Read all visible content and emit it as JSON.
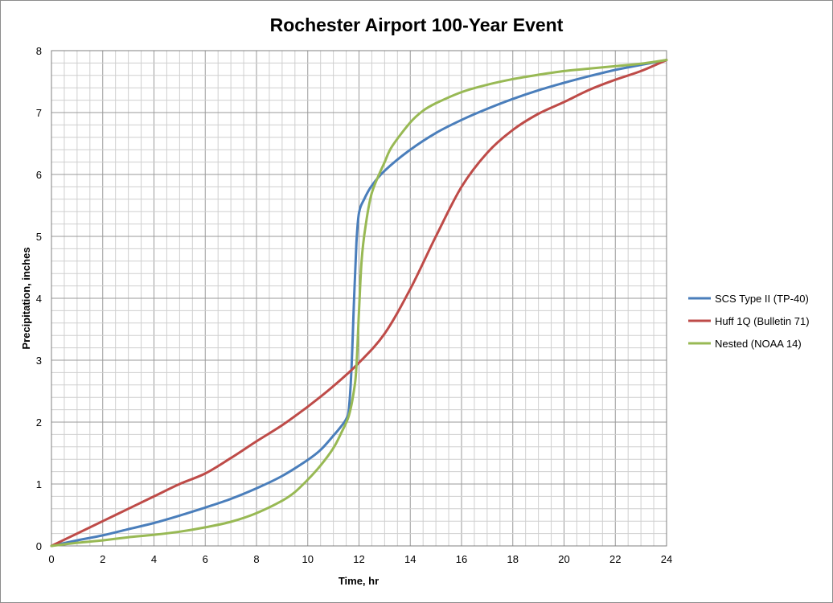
{
  "chart_data": {
    "type": "line",
    "title": "Rochester Airport 100-Year Event",
    "xlabel": "Time, hr",
    "ylabel": "Precipitation, inches",
    "xlim": [
      0,
      24
    ],
    "ylim": [
      0,
      8
    ],
    "x_ticks": [
      0,
      2,
      4,
      6,
      8,
      10,
      12,
      14,
      16,
      18,
      20,
      22,
      24
    ],
    "y_ticks": [
      0,
      1,
      2,
      3,
      4,
      5,
      6,
      7,
      8
    ],
    "grid": {
      "x_minor_step": 0.5,
      "y_minor_step": 0.2,
      "visible": true
    },
    "legend_position": "right",
    "series": [
      {
        "name": "SCS Type II (TP-40)",
        "color": "#4a7ebb",
        "points": [
          [
            0,
            0
          ],
          [
            1,
            0.09
          ],
          [
            2,
            0.17
          ],
          [
            3,
            0.27
          ],
          [
            4,
            0.37
          ],
          [
            5,
            0.49
          ],
          [
            6,
            0.62
          ],
          [
            7,
            0.76
          ],
          [
            8,
            0.93
          ],
          [
            9,
            1.13
          ],
          [
            10,
            1.39
          ],
          [
            10.5,
            1.55
          ],
          [
            11,
            1.78
          ],
          [
            11.3,
            1.93
          ],
          [
            11.5,
            2.05
          ],
          [
            11.6,
            2.2
          ],
          [
            11.7,
            2.8
          ],
          [
            11.8,
            3.9
          ],
          [
            11.9,
            4.9
          ],
          [
            12,
            5.38
          ],
          [
            12.2,
            5.6
          ],
          [
            12.5,
            5.82
          ],
          [
            13,
            6.06
          ],
          [
            14,
            6.4
          ],
          [
            15,
            6.67
          ],
          [
            16,
            6.88
          ],
          [
            17,
            7.06
          ],
          [
            18,
            7.22
          ],
          [
            19,
            7.36
          ],
          [
            20,
            7.48
          ],
          [
            21,
            7.59
          ],
          [
            22,
            7.69
          ],
          [
            23,
            7.77
          ],
          [
            24,
            7.85
          ]
        ]
      },
      {
        "name": "Huff 1Q (Bulletin 71)",
        "color": "#be4b48",
        "points": [
          [
            0,
            0
          ],
          [
            1,
            0.2
          ],
          [
            2,
            0.4
          ],
          [
            3,
            0.6
          ],
          [
            4,
            0.8
          ],
          [
            5,
            1.0
          ],
          [
            6,
            1.17
          ],
          [
            7,
            1.42
          ],
          [
            8,
            1.69
          ],
          [
            9,
            1.95
          ],
          [
            10,
            2.25
          ],
          [
            11,
            2.58
          ],
          [
            12,
            2.96
          ],
          [
            13,
            3.43
          ],
          [
            14,
            4.15
          ],
          [
            15,
            5.0
          ],
          [
            16,
            5.8
          ],
          [
            17,
            6.35
          ],
          [
            18,
            6.72
          ],
          [
            19,
            6.98
          ],
          [
            20,
            7.17
          ],
          [
            21,
            7.37
          ],
          [
            22,
            7.53
          ],
          [
            23,
            7.67
          ],
          [
            24,
            7.85
          ]
        ]
      },
      {
        "name": "Nested (NOAA 14)",
        "color": "#98b954",
        "points": [
          [
            0,
            0
          ],
          [
            1,
            0.05
          ],
          [
            2,
            0.09
          ],
          [
            3,
            0.14
          ],
          [
            4,
            0.18
          ],
          [
            5,
            0.23
          ],
          [
            6,
            0.3
          ],
          [
            7,
            0.39
          ],
          [
            8,
            0.53
          ],
          [
            9,
            0.73
          ],
          [
            9.5,
            0.87
          ],
          [
            10,
            1.07
          ],
          [
            10.5,
            1.3
          ],
          [
            11,
            1.58
          ],
          [
            11.3,
            1.82
          ],
          [
            11.6,
            2.1
          ],
          [
            11.8,
            2.5
          ],
          [
            11.9,
            2.9
          ],
          [
            12,
            3.8
          ],
          [
            12.1,
            4.6
          ],
          [
            12.25,
            5.15
          ],
          [
            12.5,
            5.7
          ],
          [
            13,
            6.2
          ],
          [
            13.3,
            6.46
          ],
          [
            14,
            6.84
          ],
          [
            14.5,
            7.03
          ],
          [
            15,
            7.15
          ],
          [
            16,
            7.33
          ],
          [
            17,
            7.45
          ],
          [
            18,
            7.54
          ],
          [
            19,
            7.61
          ],
          [
            20,
            7.67
          ],
          [
            21,
            7.71
          ],
          [
            22,
            7.75
          ],
          [
            23,
            7.79
          ],
          [
            24,
            7.85
          ]
        ]
      }
    ]
  }
}
